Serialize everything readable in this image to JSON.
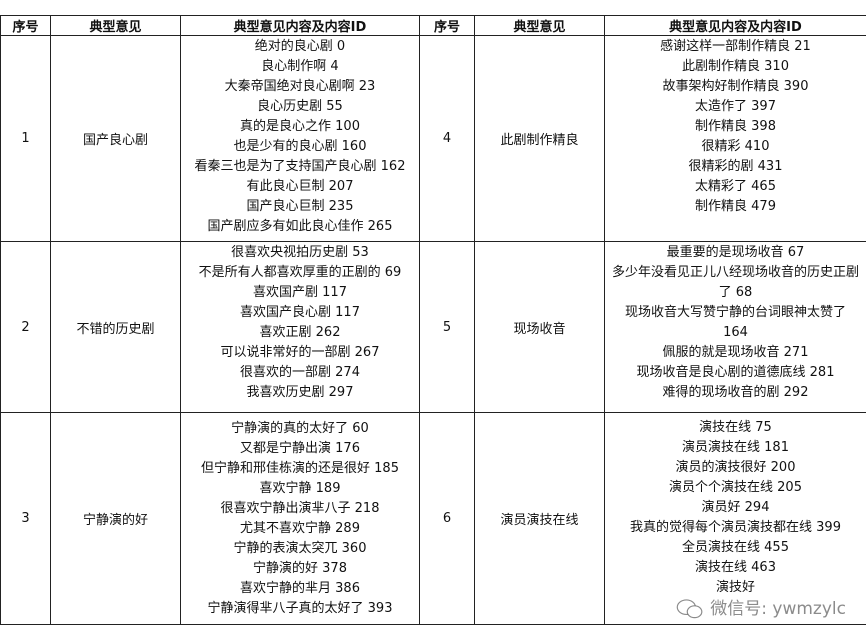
{
  "headers": [
    "序号",
    "典型意见",
    "典型意见内容及内容ID",
    "序号",
    "典型意见",
    "典型意见内容及内容ID"
  ],
  "rows": [
    {
      "left": {
        "no": "1",
        "opinion": "国产良心剧",
        "items": [
          "绝对的良心剧 0",
          "良心制作啊 4",
          "大秦帝国绝对良心剧啊 23",
          "良心历史剧 55",
          "真的是良心之作 100",
          "也是少有的良心剧 160",
          "看秦三也是为了支持国产良心剧 162",
          "有此良心巨制 207",
          "国产良心巨制 235",
          "国产剧应多有如此良心佳作 265"
        ]
      },
      "right": {
        "no": "4",
        "opinion": "此剧制作精良",
        "items": [
          "感谢这样一部制作精良 21",
          "此剧制作精良 310",
          "故事架构好制作精良 390",
          "太造作了 397",
          "制作精良 398",
          "很精彩 410",
          "很精彩的剧 431",
          "太精彩了 465",
          "制作精良 479"
        ]
      }
    },
    {
      "left": {
        "no": "2",
        "opinion": "不错的历史剧",
        "items": [
          "很喜欢央视拍历史剧 53",
          "不是所有人都喜欢厚重的正剧的 69",
          "喜欢国产剧 117",
          "喜欢国产良心剧 117",
          "喜欢正剧 262",
          "可以说非常好的一部剧 267",
          "很喜欢的一部剧 274",
          "我喜欢历史剧 297"
        ]
      },
      "right": {
        "no": "5",
        "opinion": "现场收音",
        "items": [
          "最重要的是现场收音 67",
          "多少年没看见正儿八经现场收音的历史正剧了 68",
          "现场收音大写赞宁静的台词眼神太赞了 164",
          "佩服的就是现场收音 271",
          "现场收音是良心剧的道德底线 281",
          "难得的现场收音的剧 292"
        ]
      }
    },
    {
      "left": {
        "no": "3",
        "opinion": "宁静演的好",
        "items": [
          "宁静演的真的太好了 60",
          "又都是宁静出演 176",
          "但宁静和邢佳栋演的还是很好 185",
          "喜欢宁静 189",
          "很喜欢宁静出演芈八子 218",
          "尤其不喜欢宁静 289",
          "宁静的表演太突兀 360",
          "宁静演的好 378",
          "喜欢宁静的芈月 386",
          "宁静演得芈八子真的太好了 393"
        ]
      },
      "right": {
        "no": "6",
        "opinion": "演员演技在线",
        "items": [
          "演技在线 75",
          "演员演技在线 181",
          "演员的演技很好 200",
          "演员个个演技在线 205",
          "演员好 294",
          "我真的觉得每个演员演技都在线 399",
          "全员演技在线 455",
          "演技在线 463",
          "演技好"
        ]
      }
    }
  ],
  "watermark": "微信号: ywmzylc"
}
